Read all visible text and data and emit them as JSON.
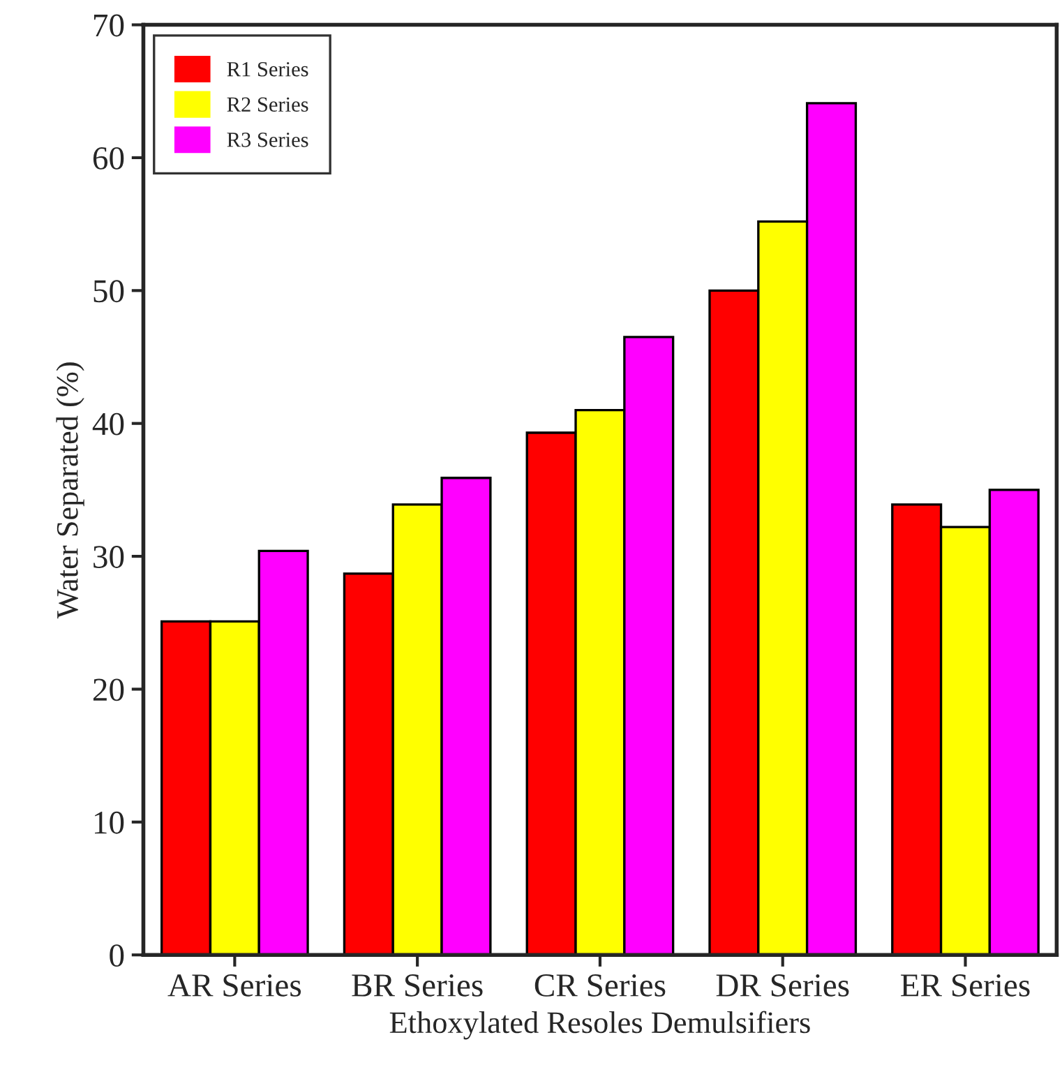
{
  "chart_data": {
    "type": "bar",
    "xlabel": "Ethoxylated Resoles Demulsifiers",
    "ylabel": "Water Separated (%)",
    "categories": [
      "AR Series",
      "BR Series",
      "CR Series",
      "DR Series",
      "ER Series"
    ],
    "series": [
      {
        "name": "R1 Series",
        "color": "#ff0000",
        "values": [
          25.1,
          28.7,
          39.3,
          50.0,
          33.9
        ]
      },
      {
        "name": "R2 Series",
        "color": "#ffff00",
        "values": [
          25.1,
          33.9,
          41.0,
          55.2,
          32.2
        ]
      },
      {
        "name": "R3 Series",
        "color": "#ff00ff",
        "values": [
          30.4,
          35.9,
          46.5,
          64.1,
          35.0
        ]
      }
    ],
    "ylim": [
      0,
      70
    ],
    "yticks": [
      0,
      10,
      20,
      30,
      40,
      50,
      60,
      70
    ],
    "grid": false,
    "legend": "top left"
  }
}
